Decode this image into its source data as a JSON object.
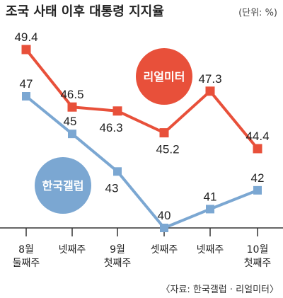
{
  "chart_data": {
    "type": "line",
    "title": "조국 사태 이후 대통령 지지율",
    "unit_note": "(단위: %)",
    "categories": [
      [
        "8월",
        "둘째주"
      ],
      [
        "넷째주"
      ],
      [
        "9월",
        "첫째주"
      ],
      [
        "셋째주"
      ],
      [
        "넷째주"
      ],
      [
        "10월",
        "첫째주"
      ]
    ],
    "series": [
      {
        "name": "리얼미터",
        "color": "#e8503a",
        "values": [
          49.4,
          46.5,
          46.3,
          45.2,
          47.3,
          44.4
        ]
      },
      {
        "name": "한국갤럽",
        "color": "#7ba7d2",
        "values": [
          47,
          45,
          43,
          40,
          41,
          42
        ]
      }
    ],
    "source": "〈자료: 한국갤럽 · 리얼미터〉"
  }
}
